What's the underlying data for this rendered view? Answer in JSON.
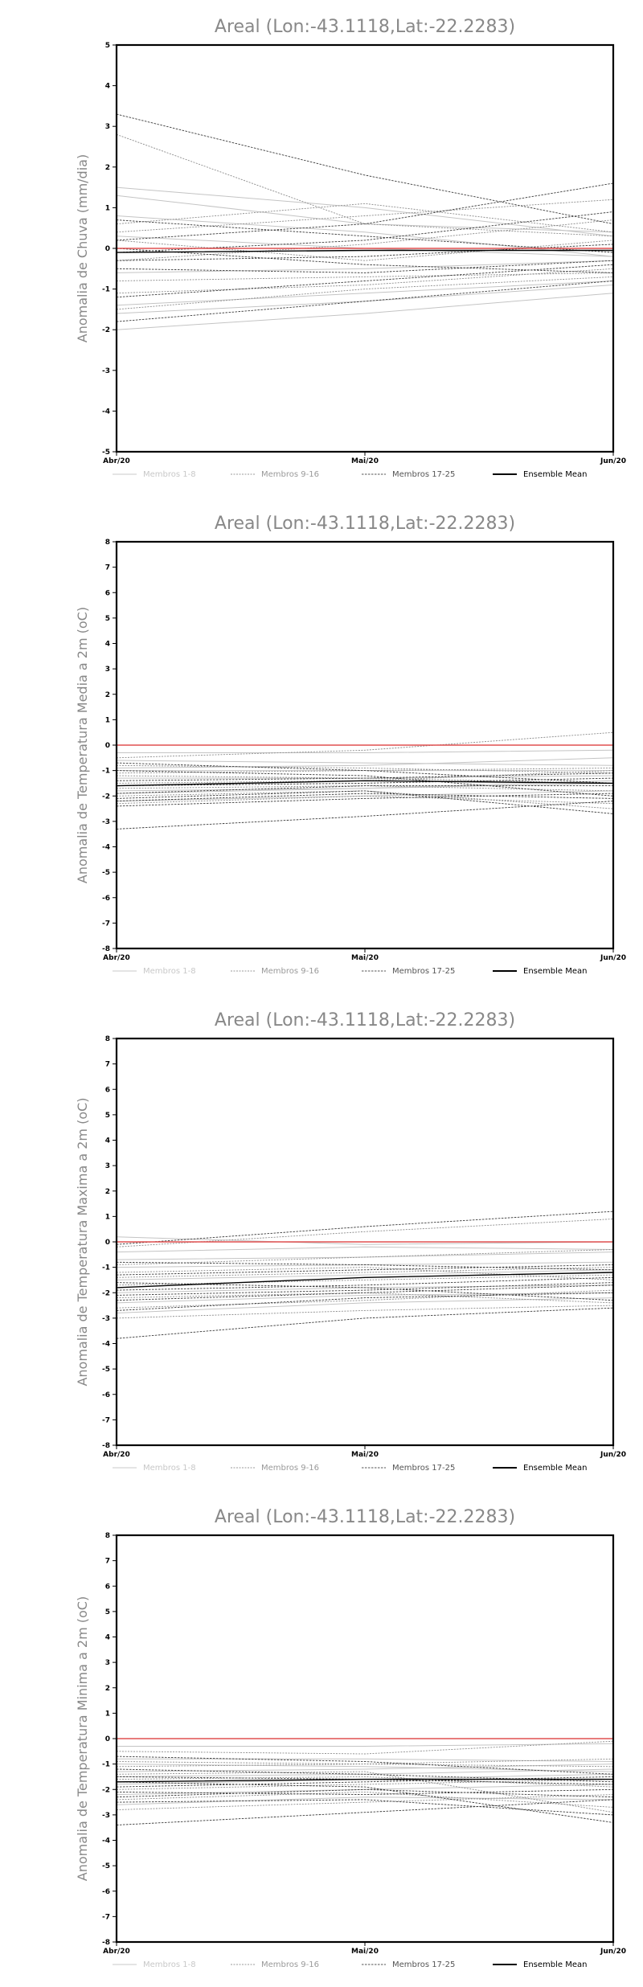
{
  "chart_data": [
    {
      "type": "line",
      "title": "Areal (Lon:-43.1118,Lat:-22.2283)",
      "ylabel": "Anomalia de Chuva (mm/dia)",
      "xlabel": "",
      "x": [
        "Abr/20",
        "Mai/20",
        "Jun/20"
      ],
      "ylim": [
        -5,
        5
      ],
      "yticks": [
        -5,
        -4,
        -3,
        -2,
        -1,
        0,
        1,
        2,
        3,
        4,
        5
      ],
      "legend": [
        "Membros 1-8",
        "Membros 9-16",
        "Membros 17-25",
        "Ensemble Mean"
      ],
      "legend_colors": [
        "#c8c8c8",
        "#999999",
        "#555555",
        "#000000"
      ],
      "reference_line": {
        "value": 0,
        "color": "#e05050"
      },
      "ensemble_mean": [
        -0.1,
        -0.05,
        -0.05
      ],
      "members_1_8": [
        [
          1.5,
          1.0,
          0.3
        ],
        [
          1.3,
          0.6,
          0.4
        ],
        [
          0.8,
          0.4,
          -0.2
        ],
        [
          -0.6,
          -0.5,
          -0.3
        ],
        [
          -1.4,
          -1.1,
          -0.8
        ],
        [
          -1.6,
          -1.3,
          -0.9
        ],
        [
          -2.0,
          -1.6,
          -1.1
        ],
        [
          0.3,
          0.0,
          -0.2
        ]
      ],
      "members_9_16": [
        [
          2.8,
          0.6,
          0.3
        ],
        [
          0.6,
          1.1,
          0.4
        ],
        [
          0.2,
          -0.3,
          0.2
        ],
        [
          -0.3,
          0.1,
          0.7
        ],
        [
          -0.8,
          -0.7,
          -0.6
        ],
        [
          -1.1,
          -0.9,
          -0.5
        ],
        [
          -1.5,
          -1.0,
          -0.7
        ],
        [
          0.4,
          0.8,
          1.2
        ]
      ],
      "members_17_25": [
        [
          3.3,
          1.8,
          0.6
        ],
        [
          0.2,
          0.6,
          1.6
        ],
        [
          0.0,
          -0.4,
          -0.6
        ],
        [
          -0.1,
          0.2,
          0.9
        ],
        [
          -0.5,
          -0.6,
          -0.3
        ],
        [
          -1.2,
          -0.8,
          -0.4
        ],
        [
          -1.8,
          -1.3,
          -0.8
        ],
        [
          0.7,
          0.3,
          -0.1
        ],
        [
          -0.3,
          -0.2,
          0.1
        ]
      ]
    },
    {
      "type": "line",
      "title": "Areal (Lon:-43.1118,Lat:-22.2283)",
      "ylabel": "Anomalia de Temperatura Media a 2m (oC)",
      "xlabel": "",
      "x": [
        "Abr/20",
        "Mai/20",
        "Jun/20"
      ],
      "ylim": [
        -8,
        8
      ],
      "yticks": [
        -8,
        -7,
        -6,
        -5,
        -4,
        -3,
        -2,
        -1,
        0,
        1,
        2,
        3,
        4,
        5,
        6,
        7,
        8
      ],
      "legend": [
        "Membros 1-8",
        "Membros 9-16",
        "Membros 17-25",
        "Ensemble Mean"
      ],
      "legend_colors": [
        "#c8c8c8",
        "#999999",
        "#555555",
        "#000000"
      ],
      "reference_line": {
        "value": 0,
        "color": "#e05050"
      },
      "ensemble_mean": [
        -1.6,
        -1.4,
        -1.5
      ],
      "members_1_8": [
        [
          -0.3,
          -0.3,
          -0.2
        ],
        [
          -1.0,
          -1.0,
          -1.0
        ],
        [
          -1.8,
          -1.7,
          -1.5
        ],
        [
          -2.2,
          -2.0,
          -1.8
        ],
        [
          -0.6,
          -0.7,
          -0.8
        ],
        [
          -1.3,
          -1.3,
          -1.2
        ],
        [
          -1.9,
          -1.7,
          -1.4
        ],
        [
          -0.9,
          -0.8,
          -0.5
        ]
      ],
      "members_9_16": [
        [
          -0.5,
          -0.2,
          0.5
        ],
        [
          -1.2,
          -1.3,
          -1.5
        ],
        [
          -1.7,
          -1.6,
          -1.8
        ],
        [
          -2.3,
          -2.0,
          -2.3
        ],
        [
          -0.8,
          -0.9,
          -1.1
        ],
        [
          -1.5,
          -1.4,
          -1.0
        ],
        [
          -2.0,
          -1.8,
          -2.5
        ],
        [
          -1.1,
          -1.0,
          -0.9
        ]
      ],
      "members_17_25": [
        [
          -3.3,
          -2.8,
          -2.2
        ],
        [
          -0.7,
          -1.0,
          -1.5
        ],
        [
          -1.4,
          -1.3,
          -1.1
        ],
        [
          -2.1,
          -1.8,
          -2.7
        ],
        [
          -2.4,
          -2.1,
          -1.9
        ],
        [
          -1.6,
          -1.5,
          -1.3
        ],
        [
          -1.0,
          -1.2,
          -2.0
        ],
        [
          -1.9,
          -1.6,
          -1.6
        ],
        [
          -2.2,
          -1.9,
          -2.1
        ]
      ]
    },
    {
      "type": "line",
      "title": "Areal (Lon:-43.1118,Lat:-22.2283)",
      "ylabel": "Anomalia de Temperatura Maxima a 2m (oC)",
      "xlabel": "",
      "x": [
        "Abr/20",
        "Mai/20",
        "Jun/20"
      ],
      "ylim": [
        -8,
        8
      ],
      "yticks": [
        -8,
        -7,
        -6,
        -5,
        -4,
        -3,
        -2,
        -1,
        0,
        1,
        2,
        3,
        4,
        5,
        6,
        7,
        8
      ],
      "legend": [
        "Membros 1-8",
        "Membros 9-16",
        "Membros 17-25",
        "Ensemble Mean"
      ],
      "legend_colors": [
        "#c8c8c8",
        "#999999",
        "#555555",
        "#000000"
      ],
      "reference_line": {
        "value": 0,
        "color": "#e05050"
      },
      "ensemble_mean": [
        -1.8,
        -1.4,
        -1.2
      ],
      "members_1_8": [
        [
          0.2,
          -0.1,
          0.0
        ],
        [
          -0.4,
          -0.2,
          -0.3
        ],
        [
          -1.0,
          -0.9,
          -0.8
        ],
        [
          -1.5,
          -1.3,
          -1.1
        ],
        [
          -2.0,
          -1.8,
          -1.7
        ],
        [
          -2.4,
          -2.1,
          -2.0
        ],
        [
          -2.8,
          -2.4,
          -2.2
        ],
        [
          -0.7,
          -0.6,
          -0.4
        ]
      ],
      "members_9_16": [
        [
          -0.2,
          0.4,
          0.9
        ],
        [
          -0.9,
          -0.6,
          -0.3
        ],
        [
          -1.2,
          -1.0,
          -1.5
        ],
        [
          -1.7,
          -1.5,
          -1.3
        ],
        [
          -2.2,
          -2.0,
          -2.4
        ],
        [
          -2.6,
          -2.3,
          -1.9
        ],
        [
          -3.0,
          -2.7,
          -2.5
        ],
        [
          -1.4,
          -1.2,
          -1.0
        ]
      ],
      "members_17_25": [
        [
          -3.8,
          -3.0,
          -2.6
        ],
        [
          -0.1,
          0.6,
          1.2
        ],
        [
          -0.8,
          -0.9,
          -1.1
        ],
        [
          -1.3,
          -1.1,
          -0.9
        ],
        [
          -1.9,
          -1.7,
          -1.4
        ],
        [
          -2.3,
          -2.0,
          -1.7
        ],
        [
          -2.7,
          -2.2,
          -2.0
        ],
        [
          -1.6,
          -1.8,
          -2.3
        ],
        [
          -2.1,
          -1.9,
          -1.6
        ]
      ]
    },
    {
      "type": "line",
      "title": "Areal (Lon:-43.1118,Lat:-22.2283)",
      "ylabel": "Anomalia de Temperatura Minima a 2m (oC)",
      "xlabel": "",
      "x": [
        "Abr/20",
        "Mai/20",
        "Jun/20"
      ],
      "ylim": [
        -8,
        8
      ],
      "yticks": [
        -8,
        -7,
        -6,
        -5,
        -4,
        -3,
        -2,
        -1,
        0,
        1,
        2,
        3,
        4,
        5,
        6,
        7,
        8
      ],
      "legend": [
        "Membros 1-8",
        "Membros 9-16",
        "Membros 17-25",
        "Ensemble Mean"
      ],
      "legend_colors": [
        "#c8c8c8",
        "#999999",
        "#555555",
        "#000000"
      ],
      "reference_line": {
        "value": 0,
        "color": "#e05050"
      },
      "ensemble_mean": [
        -1.7,
        -1.6,
        -1.6
      ],
      "members_1_8": [
        [
          -0.3,
          -0.3,
          -0.2
        ],
        [
          -0.8,
          -0.8,
          -0.9
        ],
        [
          -1.3,
          -1.2,
          -1.0
        ],
        [
          -1.8,
          -1.6,
          -1.4
        ],
        [
          -2.2,
          -2.0,
          -1.8
        ],
        [
          -2.6,
          -2.3,
          -2.4
        ],
        [
          -1.0,
          -1.1,
          -1.3
        ],
        [
          -1.5,
          -1.4,
          -1.2
        ]
      ],
      "members_9_16": [
        [
          -0.5,
          -0.6,
          -0.1
        ],
        [
          -1.1,
          -1.0,
          -0.8
        ],
        [
          -1.6,
          -1.5,
          -1.9
        ],
        [
          -2.0,
          -1.8,
          -1.6
        ],
        [
          -2.4,
          -2.1,
          -2.7
        ],
        [
          -2.8,
          -2.5,
          -2.2
        ],
        [
          -1.4,
          -1.3,
          -2.9
        ],
        [
          -0.9,
          -1.0,
          -1.1
        ]
      ],
      "members_17_25": [
        [
          -3.4,
          -2.9,
          -2.4
        ],
        [
          -0.7,
          -0.9,
          -1.4
        ],
        [
          -1.2,
          -1.4,
          -1.7
        ],
        [
          -1.7,
          -1.9,
          -3.3
        ],
        [
          -2.1,
          -2.2,
          -2.0
        ],
        [
          -2.5,
          -2.4,
          -3.0
        ],
        [
          -1.9,
          -1.7,
          -1.5
        ],
        [
          -2.3,
          -2.0,
          -2.3
        ],
        [
          -1.5,
          -1.6,
          -1.8
        ]
      ]
    }
  ]
}
